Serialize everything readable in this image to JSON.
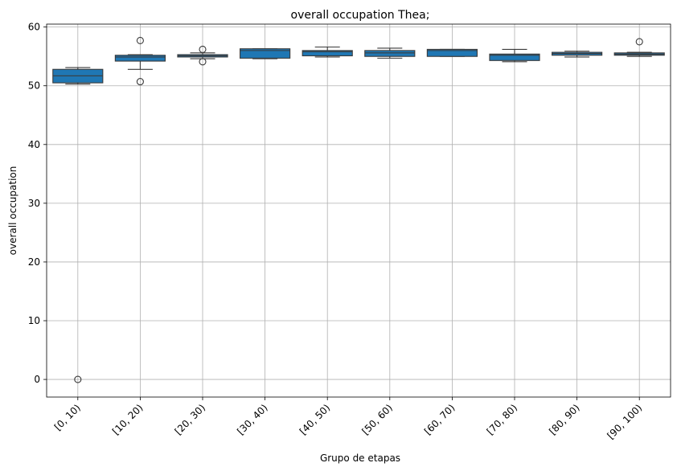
{
  "chart_data": {
    "type": "box",
    "title": "overall occupation Thea;",
    "xlabel": "Grupo de etapas",
    "ylabel": "overall occupation",
    "ylim": [
      -3,
      60.5
    ],
    "yticks": [
      0,
      10,
      20,
      30,
      40,
      50,
      60
    ],
    "grid": true,
    "box_color": "#1f77b4",
    "categories": [
      "[0, 10)",
      "[10, 20)",
      "[20, 30)",
      "[30, 40)",
      "[40, 50)",
      "[50, 60)",
      "[60, 70)",
      "[70, 80)",
      "[80, 90)",
      "[90, 100)"
    ],
    "boxes": [
      {
        "whisker_low": 50.3,
        "q1": 50.5,
        "median": 51.7,
        "q3": 52.8,
        "whisker_high": 53.1,
        "outliers": [
          0.0
        ]
      },
      {
        "whisker_low": 52.8,
        "q1": 54.2,
        "median": 54.9,
        "q3": 55.2,
        "whisker_high": 55.3,
        "outliers": [
          57.7,
          50.7
        ]
      },
      {
        "whisker_low": 54.6,
        "q1": 54.9,
        "median": 55.1,
        "q3": 55.3,
        "whisker_high": 55.6,
        "outliers": [
          56.2,
          54.1
        ]
      },
      {
        "whisker_low": 54.6,
        "q1": 54.7,
        "median": 56.0,
        "q3": 56.3,
        "whisker_high": 56.3,
        "outliers": []
      },
      {
        "whisker_low": 54.9,
        "q1": 55.1,
        "median": 55.8,
        "q3": 56.0,
        "whisker_high": 56.6,
        "outliers": []
      },
      {
        "whisker_low": 54.7,
        "q1": 55.0,
        "median": 55.6,
        "q3": 56.0,
        "whisker_high": 56.4,
        "outliers": []
      },
      {
        "whisker_low": 55.0,
        "q1": 55.0,
        "median": 56.0,
        "q3": 56.2,
        "whisker_high": 56.2,
        "outliers": []
      },
      {
        "whisker_low": 54.1,
        "q1": 54.3,
        "median": 55.2,
        "q3": 55.4,
        "whisker_high": 56.2,
        "outliers": []
      },
      {
        "whisker_low": 54.9,
        "q1": 55.2,
        "median": 55.5,
        "q3": 55.7,
        "whisker_high": 55.9,
        "outliers": []
      },
      {
        "whisker_low": 55.0,
        "q1": 55.2,
        "median": 55.4,
        "q3": 55.6,
        "whisker_high": 55.7,
        "outliers": [
          57.5
        ]
      }
    ]
  }
}
